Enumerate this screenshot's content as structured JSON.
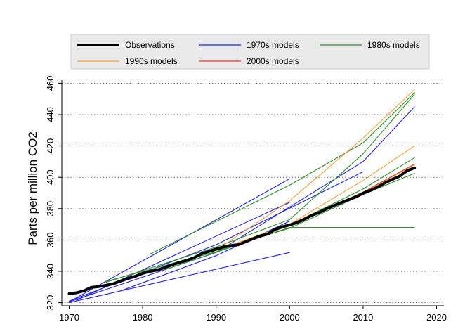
{
  "chart_data": {
    "type": "line",
    "title": "",
    "xlabel": "",
    "ylabel": "Parts per million CO2",
    "xlim": [
      1969,
      2021
    ],
    "ylim": [
      318,
      462
    ],
    "x_ticks": [
      1970,
      1980,
      1990,
      2000,
      2010,
      2020
    ],
    "y_ticks": [
      320,
      340,
      360,
      380,
      400,
      420,
      440,
      460
    ],
    "grid": "horizontal-dotted",
    "legend": {
      "placement": "top",
      "entries": [
        {
          "label": "Observations",
          "group": "obs"
        },
        {
          "label": "1970s models",
          "group": "m1970"
        },
        {
          "label": "1980s models",
          "group": "m1980"
        },
        {
          "label": "1990s models",
          "group": "m1990"
        },
        {
          "label": "2000s models",
          "group": "m2000"
        }
      ]
    },
    "colors": {
      "obs": "#000000",
      "m1970": "#2020e0",
      "m1980": "#2e8b2e",
      "m1990": "#f0a040",
      "m2000": "#e03a2a"
    },
    "series": [
      {
        "group": "obs",
        "points": [
          [
            1970,
            325.7
          ],
          [
            1971,
            326.3
          ],
          [
            1972,
            327.5
          ],
          [
            1973,
            329.7
          ],
          [
            1974,
            330.2
          ],
          [
            1975,
            331.1
          ],
          [
            1976,
            332.0
          ],
          [
            1977,
            333.8
          ],
          [
            1978,
            335.4
          ],
          [
            1979,
            336.8
          ],
          [
            1980,
            338.7
          ],
          [
            1981,
            340.0
          ],
          [
            1982,
            340.8
          ],
          [
            1983,
            342.4
          ],
          [
            1984,
            344.1
          ],
          [
            1985,
            345.7
          ],
          [
            1986,
            347.0
          ],
          [
            1987,
            348.7
          ],
          [
            1988,
            351.2
          ],
          [
            1989,
            352.7
          ],
          [
            1990,
            354.2
          ],
          [
            1991,
            355.6
          ],
          [
            1992,
            356.4
          ],
          [
            1993,
            357.0
          ],
          [
            1994,
            358.8
          ],
          [
            1995,
            360.8
          ],
          [
            1996,
            362.6
          ],
          [
            1997,
            363.7
          ],
          [
            1998,
            366.7
          ],
          [
            1999,
            368.4
          ],
          [
            2000,
            369.6
          ],
          [
            2001,
            371.1
          ],
          [
            2002,
            373.2
          ],
          [
            2003,
            375.8
          ],
          [
            2004,
            377.5
          ],
          [
            2005,
            379.8
          ],
          [
            2006,
            381.9
          ],
          [
            2007,
            383.8
          ],
          [
            2008,
            385.6
          ],
          [
            2009,
            387.4
          ],
          [
            2010,
            389.9
          ],
          [
            2011,
            391.6
          ],
          [
            2012,
            393.8
          ],
          [
            2013,
            396.5
          ],
          [
            2014,
            398.7
          ],
          [
            2015,
            400.8
          ],
          [
            2016,
            404.2
          ],
          [
            2017,
            406.0
          ]
        ]
      },
      {
        "group": "m1970",
        "points": [
          [
            1970,
            320.5
          ],
          [
            2000,
            399.0
          ]
        ]
      },
      {
        "group": "m1970",
        "points": [
          [
            1970,
            320.0
          ],
          [
            2000,
            352.0
          ]
        ]
      },
      {
        "group": "m1970",
        "points": [
          [
            1970,
            321.0
          ],
          [
            1990,
            357.0
          ],
          [
            2010,
            403.5
          ]
        ]
      },
      {
        "group": "m1970",
        "points": [
          [
            1971,
            321.5
          ],
          [
            2000,
            384.0
          ]
        ]
      },
      {
        "group": "m1970",
        "points": [
          [
            1977,
            327.5
          ],
          [
            1990,
            350.0
          ],
          [
            2000,
            372.0
          ]
        ]
      },
      {
        "group": "m1970",
        "points": [
          [
            1970,
            320.5
          ],
          [
            1990,
            352.0
          ],
          [
            2010,
            410.0
          ],
          [
            2017,
            445.0
          ]
        ]
      },
      {
        "group": "m1980",
        "points": [
          [
            1981,
            351.0
          ],
          [
            2000,
            395.0
          ],
          [
            2010,
            422.0
          ],
          [
            2017,
            454.0
          ]
        ]
      },
      {
        "group": "m1980",
        "points": [
          [
            1975,
            333.0
          ],
          [
            1990,
            355.5
          ],
          [
            2000,
            373.0
          ],
          [
            2010,
            415.0
          ],
          [
            2017,
            453.0
          ]
        ]
      },
      {
        "group": "m1980",
        "points": [
          [
            1983,
            341.0
          ],
          [
            2000,
            368.0
          ],
          [
            2017,
            368.0
          ]
        ]
      },
      {
        "group": "m1980",
        "points": [
          [
            1975,
            333.5
          ],
          [
            1990,
            352.5
          ],
          [
            2000,
            369.5
          ],
          [
            2010,
            392.5
          ],
          [
            2017,
            412.5
          ]
        ]
      },
      {
        "group": "m1980",
        "points": [
          [
            1988,
            350.5
          ],
          [
            2000,
            367.5
          ],
          [
            2010,
            389.0
          ],
          [
            2017,
            402.5
          ]
        ]
      },
      {
        "group": "m1990",
        "points": [
          [
            1990,
            353.5
          ],
          [
            2000,
            385.0
          ],
          [
            2010,
            425.0
          ],
          [
            2017,
            456.0
          ]
        ]
      },
      {
        "group": "m1990",
        "points": [
          [
            1990,
            353.5
          ],
          [
            2000,
            370.0
          ],
          [
            2010,
            398.0
          ],
          [
            2017,
            420.0
          ]
        ]
      },
      {
        "group": "m1990",
        "points": [
          [
            1992,
            356.0
          ],
          [
            2000,
            369.0
          ],
          [
            2010,
            390.0
          ],
          [
            2017,
            408.0
          ]
        ]
      },
      {
        "group": "m2000",
        "points": [
          [
            2000,
            370.0
          ],
          [
            2010,
            390.5
          ],
          [
            2017,
            408.5
          ]
        ]
      }
    ]
  }
}
